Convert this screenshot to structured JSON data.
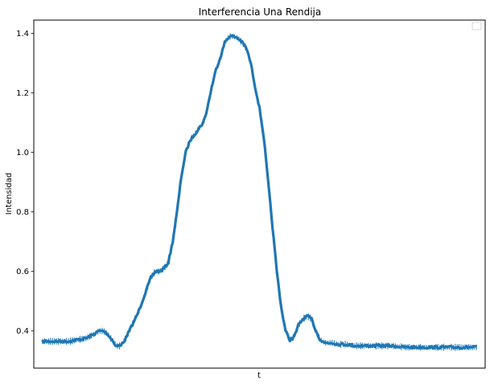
{
  "chart_data": {
    "type": "line",
    "title": "Interferencia Una Rendija",
    "xlabel": "t",
    "ylabel": "Intensidad",
    "x_range": [
      -0.02,
      1.02
    ],
    "ylim": [
      0.275,
      1.445
    ],
    "yticks": [
      0.4,
      0.6,
      0.8,
      1.0,
      1.2,
      1.4
    ],
    "ytick_labels": [
      "0.4",
      "0.6",
      "0.8",
      "1.0",
      "1.2",
      "1.4"
    ],
    "xticks_shown": false,
    "grid": false,
    "legend": "top-right (empty)",
    "colors": {
      "line": "#1f77b4",
      "axes": "#000000",
      "background": "#ffffff"
    },
    "series": [
      {
        "x": [
          0.0,
          0.03,
          0.06,
          0.08,
          0.1,
          0.12,
          0.13,
          0.14,
          0.15,
          0.16,
          0.17,
          0.18,
          0.19,
          0.2,
          0.21,
          0.22,
          0.23,
          0.24,
          0.25,
          0.26,
          0.27,
          0.28,
          0.29,
          0.3,
          0.31,
          0.32,
          0.33,
          0.34,
          0.35,
          0.36,
          0.37,
          0.375,
          0.38,
          0.39,
          0.4,
          0.41,
          0.42,
          0.43,
          0.44,
          0.45,
          0.46,
          0.47,
          0.48,
          0.49,
          0.5,
          0.51,
          0.52,
          0.53,
          0.54,
          0.55,
          0.56,
          0.57,
          0.58,
          0.59,
          0.6,
          0.61,
          0.62,
          0.63,
          0.64,
          0.65,
          0.66,
          0.67,
          0.68,
          0.69,
          0.7,
          0.72,
          0.74,
          0.76,
          0.78,
          0.8,
          0.84,
          0.88,
          0.92,
          0.96,
          1.0
        ],
        "y": [
          0.365,
          0.365,
          0.365,
          0.37,
          0.375,
          0.39,
          0.4,
          0.4,
          0.39,
          0.37,
          0.35,
          0.35,
          0.37,
          0.4,
          0.43,
          0.46,
          0.5,
          0.54,
          0.58,
          0.6,
          0.6,
          0.61,
          0.63,
          0.7,
          0.8,
          0.92,
          1.0,
          1.04,
          1.06,
          1.08,
          1.1,
          1.12,
          1.15,
          1.22,
          1.28,
          1.32,
          1.37,
          1.39,
          1.39,
          1.385,
          1.37,
          1.35,
          1.3,
          1.22,
          1.15,
          1.05,
          0.9,
          0.75,
          0.6,
          0.48,
          0.4,
          0.37,
          0.38,
          0.42,
          0.44,
          0.45,
          0.44,
          0.4,
          0.37,
          0.36,
          0.36,
          0.36,
          0.355,
          0.355,
          0.355,
          0.35,
          0.35,
          0.35,
          0.35,
          0.35,
          0.345,
          0.345,
          0.345,
          0.345,
          0.345
        ]
      }
    ]
  }
}
